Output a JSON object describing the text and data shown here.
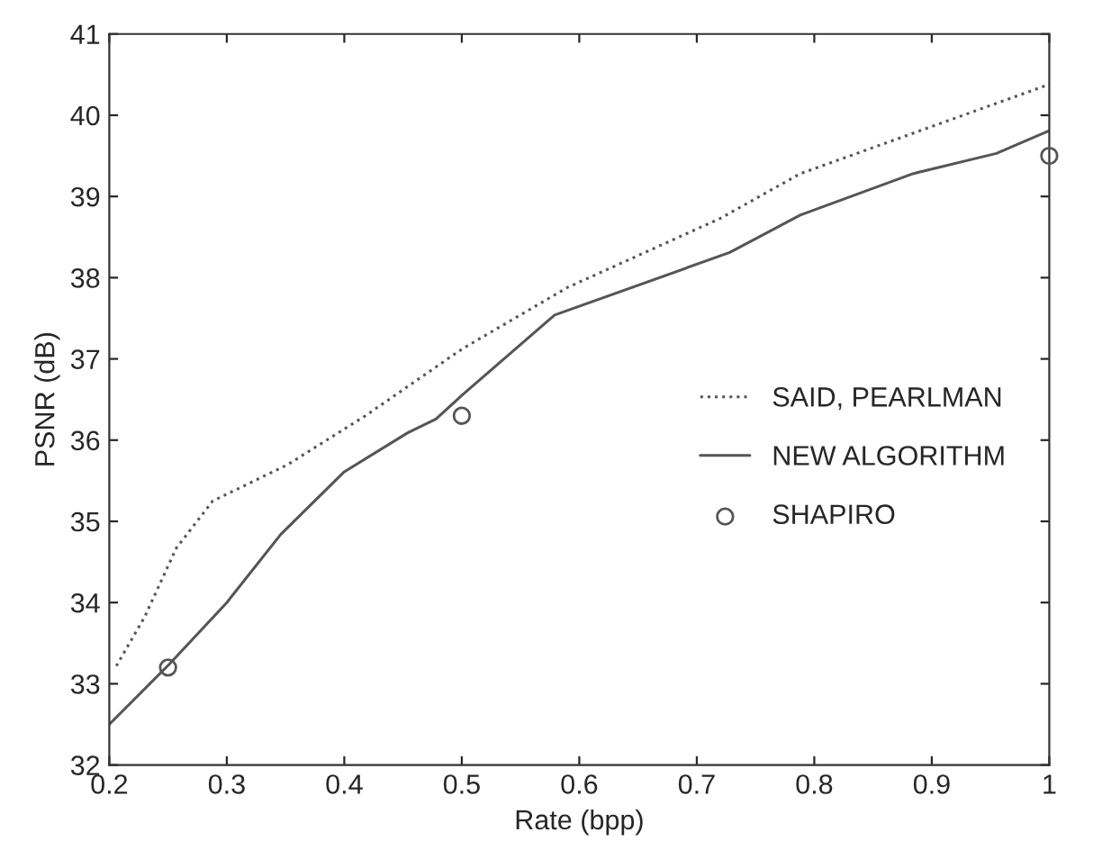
{
  "chart_data": {
    "type": "line",
    "xlabel": "Rate (bpp)",
    "ylabel": "PSNR (dB)",
    "xlim": [
      0.2,
      1
    ],
    "ylim": [
      32,
      41
    ],
    "xticks": [
      0.2,
      0.3,
      0.4,
      0.5,
      0.6,
      0.7,
      0.8,
      0.9,
      1
    ],
    "yticks": [
      32,
      33,
      34,
      35,
      36,
      37,
      38,
      39,
      40,
      41
    ],
    "grid": false,
    "legend": "right",
    "series": [
      {
        "name": "SAID, PEARLMAN",
        "line_style": "dotted",
        "color": "#555555",
        "x": [
          0.206,
          0.23,
          0.257,
          0.288,
          0.352,
          0.418,
          0.5,
          0.59,
          0.72,
          0.788,
          1.0
        ],
        "values": [
          33.22,
          33.82,
          34.67,
          35.25,
          35.7,
          36.3,
          37.12,
          37.88,
          38.73,
          39.28,
          40.38
        ]
      },
      {
        "name": "NEW ALGORITHM",
        "line_style": "solid",
        "color": "#555555",
        "x": [
          0.2,
          0.251,
          0.3,
          0.346,
          0.4,
          0.454,
          0.478,
          0.5,
          0.579,
          0.728,
          0.788,
          0.884,
          0.955,
          1.0
        ],
        "values": [
          32.5,
          33.24,
          34.0,
          34.84,
          35.61,
          36.09,
          36.26,
          36.55,
          37.54,
          38.31,
          38.77,
          39.28,
          39.53,
          39.81
        ]
      },
      {
        "name": "SHAPIRO",
        "type": "scatter",
        "marker": "circle",
        "color": "#555555",
        "x": [
          0.25,
          0.5,
          1.0
        ],
        "values": [
          33.2,
          36.3,
          39.5
        ]
      }
    ]
  }
}
